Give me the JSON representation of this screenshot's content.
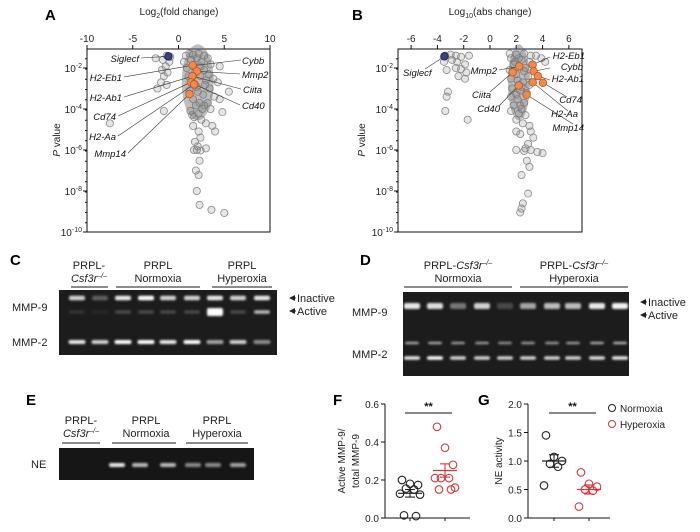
{
  "panels": {
    "a": "A",
    "b": "B",
    "c": "C",
    "d": "D",
    "e": "E",
    "f": "F",
    "g": "G"
  },
  "colors": {
    "highlight_up": "#f08a4b",
    "highlight_down": "#3b3f7a",
    "background_points": "#8a8a8a",
    "normoxia": "#222222",
    "hyperoxia": "#d2373c",
    "gel": "#1c1c1c",
    "band": "#ffffff"
  },
  "chart_data": [
    {
      "id": "A",
      "type": "scatter",
      "xlabel_main": "Log",
      "xlabel_sub": "2",
      "xlabel_rest": "(fold change)",
      "ylabel_italic": "P",
      "ylabel_rest": " value",
      "xlim": [
        -10,
        10
      ],
      "xticks": [
        "-10",
        "-5",
        "0",
        "5",
        "10"
      ],
      "ylim": [
        1e-10,
        0.085
      ],
      "yscale": "log",
      "ytick_base": "10",
      "ytick_exps": [
        "-2",
        "-4",
        "-6",
        "-8",
        "-10"
      ],
      "highlighted": [
        {
          "gene": "Siglecf",
          "x": -1.1,
          "p": 0.037,
          "color": "down"
        },
        {
          "gene": "Cybb",
          "x": 1.6,
          "p": 0.013,
          "color": "up"
        },
        {
          "gene": "H2-Eb1",
          "x": 1.55,
          "p": 0.0135,
          "color": "up"
        },
        {
          "gene": "Mmp2",
          "x": 2.0,
          "p": 0.0069,
          "color": "up"
        },
        {
          "gene": "Ciita",
          "x": 1.55,
          "p": 0.004,
          "color": "up"
        },
        {
          "gene": "H2-Ab1",
          "x": 1.5,
          "p": 0.004,
          "color": "up"
        },
        {
          "gene": "Cd74",
          "x": 1.35,
          "p": 0.002,
          "color": "up"
        },
        {
          "gene": "Cd40",
          "x": 1.75,
          "p": 0.0016,
          "color": "up"
        },
        {
          "gene": "H2-Aa",
          "x": 1.7,
          "p": 0.0016,
          "color": "up"
        },
        {
          "gene": "Mmp14",
          "x": 1.2,
          "p": 0.00054,
          "color": "up"
        }
      ],
      "points": [
        [
          0.8,
          0.04
        ],
        [
          1.2,
          0.05
        ],
        [
          1.6,
          0.045
        ],
        [
          2.2,
          0.05
        ],
        [
          2.8,
          0.04
        ],
        [
          3.2,
          0.03
        ],
        [
          0.6,
          0.02
        ],
        [
          1.4,
          0.025
        ],
        [
          2.5,
          0.02
        ],
        [
          3.5,
          0.015
        ],
        [
          4.5,
          0.012
        ],
        [
          0.9,
          0.01
        ],
        [
          2.8,
          0.008
        ],
        [
          3.3,
          0.005
        ],
        [
          1.1,
          0.004
        ],
        [
          2.4,
          0.004
        ],
        [
          3.8,
          0.003
        ],
        [
          4.3,
          0.002
        ],
        [
          1.5,
          0.002
        ],
        [
          2.9,
          0.0015
        ],
        [
          3.4,
          0.001
        ],
        [
          5.5,
          0.0007
        ],
        [
          1.2,
          0.0008
        ],
        [
          2.1,
          0.0007
        ],
        [
          2.7,
          0.0005
        ],
        [
          3.9,
          0.0004
        ],
        [
          4.5,
          0.0003
        ],
        [
          1.6,
          0.0003
        ],
        [
          2.3,
          0.0002
        ],
        [
          3.2,
          0.0002
        ],
        [
          1.9,
          0.00015
        ],
        [
          2.6,
          0.0001
        ],
        [
          3.5,
          0.0001
        ],
        [
          1.3,
          8e-05
        ],
        [
          2.2,
          6e-05
        ],
        [
          4.8,
          7e-05
        ],
        [
          1.7,
          4e-05
        ],
        [
          2.5,
          3e-05
        ],
        [
          3.0,
          2e-05
        ],
        [
          1.6,
          1.5e-05
        ],
        [
          3.7,
          1.5e-05
        ],
        [
          4.0,
          8e-06
        ],
        [
          2.2,
          8e-06
        ],
        [
          2.4,
          4e-06
        ],
        [
          1.8,
          2.5e-06
        ],
        [
          2.1,
          1.5e-06
        ],
        [
          2.0,
          1e-06
        ],
        [
          1.7,
          1e-06
        ],
        [
          2.4,
          9.5e-07
        ],
        [
          3.0,
          1.2e-06
        ],
        [
          2.3,
          3e-07
        ],
        [
          1.9,
          1e-07
        ],
        [
          2.2,
          6e-08
        ],
        [
          2.0,
          1e-08
        ],
        [
          2.3,
          2.1e-09
        ],
        [
          3.6,
          1.2e-09
        ],
        [
          5.0,
          8.5e-10
        ],
        [
          2.0,
          0.03
        ],
        [
          2.4,
          0.012
        ],
        [
          1.8,
          0.006
        ],
        [
          3.0,
          0.0025
        ],
        [
          2.0,
          0.0012
        ],
        [
          2.8,
          0.00015
        ],
        [
          1.5,
          5e-05
        ],
        [
          -1.3,
          0.04
        ],
        [
          -0.9,
          0.035
        ],
        [
          -2.5,
          0.03
        ],
        [
          -1.7,
          0.025
        ],
        [
          -1.0,
          0.02
        ],
        [
          -1.4,
          0.012
        ],
        [
          -1.8,
          0.008
        ],
        [
          -1.2,
          0.006
        ],
        [
          -1.6,
          0.004
        ],
        [
          -1.9,
          0.002
        ],
        [
          -2.3,
          0.001
        ],
        [
          -1.3,
          0.0015
        ],
        [
          -1.6,
          8e-05
        ],
        [
          -7.5,
          2e-05
        ]
      ]
    },
    {
      "id": "B",
      "type": "scatter",
      "xlabel_main": "Log",
      "xlabel_sub": "10",
      "xlabel_rest": "(abs change)",
      "ylabel_italic": "P",
      "ylabel_rest": " value",
      "xlim": [
        -7,
        7
      ],
      "xticks": [
        "-6",
        "-4",
        "-2",
        "0",
        "2",
        "4",
        "6"
      ],
      "ylim": [
        1e-10,
        0.085
      ],
      "yscale": "log",
      "ytick_base": "10",
      "ytick_exps": [
        "-2",
        "-4",
        "-6",
        "-8",
        "-10"
      ],
      "highlighted": [
        {
          "gene": "Siglecf",
          "x": -3.47,
          "p": 0.037,
          "color": "down"
        },
        {
          "gene": "Mmp2",
          "x": 2.22,
          "p": 0.012,
          "color": "up"
        },
        {
          "gene": "Ciita",
          "x": 1.72,
          "p": 0.0062,
          "color": "up"
        },
        {
          "gene": "Cd40",
          "x": 2.18,
          "p": 0.0014,
          "color": "up"
        },
        {
          "gene": "Mmp14",
          "x": 2.78,
          "p": 0.0005,
          "color": "up"
        },
        {
          "gene": "H2-Eb1",
          "x": 3.24,
          "p": 0.0145,
          "color": "up"
        },
        {
          "gene": "Cybb",
          "x": 3.32,
          "p": 0.0069,
          "color": "up"
        },
        {
          "gene": "H2-Ab1",
          "x": 3.65,
          "p": 0.004,
          "color": "up"
        },
        {
          "gene": "Cd74",
          "x": 4.03,
          "p": 0.0019,
          "color": "up"
        },
        {
          "gene": "H2-Aa",
          "x": 3.25,
          "p": 0.002,
          "color": "up"
        }
      ],
      "points": [
        [
          1.5,
          0.05
        ],
        [
          2.0,
          0.045
        ],
        [
          2.6,
          0.05
        ],
        [
          3.1,
          0.04
        ],
        [
          1.6,
          0.03
        ],
        [
          2.4,
          0.025
        ],
        [
          3.0,
          0.02
        ],
        [
          1.8,
          0.015
        ],
        [
          2.7,
          0.01
        ],
        [
          1.5,
          0.008
        ],
        [
          2.0,
          0.005
        ],
        [
          2.9,
          0.004
        ],
        [
          1.6,
          0.003
        ],
        [
          2.5,
          0.002
        ],
        [
          3.0,
          0.0015
        ],
        [
          1.7,
          0.001
        ],
        [
          2.3,
          0.0008
        ],
        [
          2.8,
          0.0006
        ],
        [
          1.6,
          0.0004
        ],
        [
          2.1,
          0.0003
        ],
        [
          2.6,
          0.0002
        ],
        [
          1.8,
          0.00015
        ],
        [
          2.4,
          0.0001
        ],
        [
          1.6,
          8e-05
        ],
        [
          2.2,
          6e-05
        ],
        [
          2.7,
          5e-05
        ],
        [
          2.0,
          3e-05
        ],
        [
          2.5,
          2e-05
        ],
        [
          3.0,
          1.5e-05
        ],
        [
          2.0,
          8e-06
        ],
        [
          2.3,
          6e-06
        ],
        [
          3.1,
          8e-06
        ],
        [
          3.3,
          4e-06
        ],
        [
          2.9,
          2e-06
        ],
        [
          2.7,
          1.2e-06
        ],
        [
          2.0,
          1e-06
        ],
        [
          2.6,
          9e-07
        ],
        [
          3.1,
          1e-06
        ],
        [
          3.6,
          8e-07
        ],
        [
          4.0,
          7e-07
        ],
        [
          2.8,
          3e-07
        ],
        [
          3.0,
          1.5e-07
        ],
        [
          2.4,
          6e-08
        ],
        [
          2.9,
          7.5e-09
        ],
        [
          2.5,
          2.5e-09
        ],
        [
          2.4,
          1.4e-09
        ],
        [
          2.3,
          9e-10
        ],
        [
          3.5,
          0.04
        ],
        [
          3.9,
          0.03
        ],
        [
          4.2,
          0.02
        ],
        [
          2.2,
          0.03
        ],
        [
          1.9,
          0.02
        ],
        [
          2.6,
          0.007
        ],
        [
          2.1,
          0.0025
        ],
        [
          2.4,
          0.0012
        ],
        [
          2.0,
          0.0005
        ],
        [
          2.3,
          0.00015
        ],
        [
          -3.4,
          0.04
        ],
        [
          -3.0,
          0.045
        ],
        [
          -2.6,
          0.04
        ],
        [
          -2.2,
          0.035
        ],
        [
          -1.6,
          0.04
        ],
        [
          -3.5,
          0.02
        ],
        [
          -2.9,
          0.025
        ],
        [
          -2.5,
          0.02
        ],
        [
          -1.9,
          0.015
        ],
        [
          -3.3,
          0.008
        ],
        [
          -2.6,
          0.01
        ],
        [
          -2.2,
          0.009
        ],
        [
          -1.8,
          0.006
        ],
        [
          -2.4,
          0.004
        ],
        [
          -3.2,
          0.0007
        ],
        [
          -3.3,
          0.0004
        ],
        [
          -1.9,
          0.003
        ],
        [
          -3.4,
          8e-05
        ],
        [
          -1.7,
          3e-05
        ]
      ]
    },
    {
      "id": "F",
      "type": "scatter",
      "ylabel_line1": "Active MMP-9/",
      "ylabel_line2": "total MMP-9",
      "ylim": [
        0,
        0.6
      ],
      "yticks": [
        "0.0",
        "0.2",
        "0.4",
        "0.6"
      ],
      "significance": "**",
      "series": [
        {
          "name": "Normoxia",
          "values": [
            0.2,
            0.18,
            0.174,
            0.155,
            0.15,
            0.128,
            0.123,
            0.014,
            0.01
          ],
          "mean": 0.13,
          "sem": 0.02
        },
        {
          "name": "Hyperoxia",
          "values": [
            0.48,
            0.37,
            0.28,
            0.21,
            0.21,
            0.21,
            0.16,
            0.15,
            0.15
          ],
          "mean": 0.25,
          "sem": 0.035
        }
      ]
    },
    {
      "id": "G",
      "type": "scatter",
      "ylabel": "NE activity",
      "ylim": [
        0,
        2.0
      ],
      "yticks": [
        "0.0",
        "0.5",
        "1.0",
        "1.5",
        "2.0"
      ],
      "significance": "**",
      "legend_position": "top-right",
      "series": [
        {
          "name": "Normoxia",
          "values": [
            1.45,
            1.07,
            1.0,
            0.95,
            0.9,
            0.57
          ],
          "mean": 1.0,
          "sem": 0.11
        },
        {
          "name": "Hyperoxia",
          "values": [
            0.8,
            0.6,
            0.55,
            0.5,
            0.48,
            0.2
          ],
          "mean": 0.5,
          "sem": 0.08
        }
      ]
    }
  ],
  "gel_c": {
    "groups": [
      {
        "line1": "PRPL-",
        "line2": "Csf3r",
        "sup": "–/–"
      },
      {
        "line1": "PRPL",
        "line2": "Normoxia"
      },
      {
        "line1": "PRPL",
        "line2": "Hyperoxia"
      }
    ],
    "row_labels": [
      "MMP-9",
      "MMP-2"
    ],
    "arrows": [
      "Inactive",
      "Active"
    ],
    "bands": {
      "inactive": [
        0.8,
        0.3,
        0.9,
        1,
        0.8,
        0.8,
        0.9,
        0.8,
        0.9
      ],
      "active": [
        0.1,
        0.05,
        0.2,
        0.2,
        0.2,
        0.2,
        1,
        0.2,
        0.7
      ],
      "mmp2": [
        0.9,
        0.8,
        1,
        1,
        0.9,
        1,
        0.6,
        0.8,
        0.5
      ]
    }
  },
  "gel_d": {
    "groups": [
      {
        "line1": "PRPL-",
        "it": "Csf3r",
        "sup": "–/–",
        "line2": "Normoxia"
      },
      {
        "line1": "PRPL-",
        "it": "Csf3r",
        "sup": "–/–",
        "line2": "Hyperoxia"
      }
    ],
    "row_labels": [
      "MMP-9",
      "MMP-2"
    ],
    "arrows": [
      "Inactive",
      "Active"
    ],
    "bands": {
      "inactive": [
        0.9,
        0.85,
        0.4,
        0.8,
        0.2,
        0.6,
        0.7,
        0.7,
        0.9,
        0.95
      ],
      "mmp2_upper": [
        0.6,
        0.6,
        0.55,
        0.55,
        0.5,
        0.55,
        0.55,
        0.55,
        0.6,
        0.65
      ],
      "mmp2_lower": [
        0.9,
        1,
        0.8,
        0.8,
        0.8,
        0.8,
        0.8,
        0.8,
        0.85,
        0.9
      ]
    }
  },
  "gel_e": {
    "groups": [
      {
        "line1": "PRPL-",
        "line2": "Csf3r",
        "sup": "–/–"
      },
      {
        "line1": "PRPL",
        "line2": "Normoxia"
      },
      {
        "line1": "PRPL",
        "line2": "Hyperoxia"
      }
    ],
    "row_label": "NE",
    "bands": {
      "ne": [
        0,
        0,
        0.9,
        0.7,
        0.7,
        0.5,
        0.5,
        0.6
      ]
    }
  }
}
